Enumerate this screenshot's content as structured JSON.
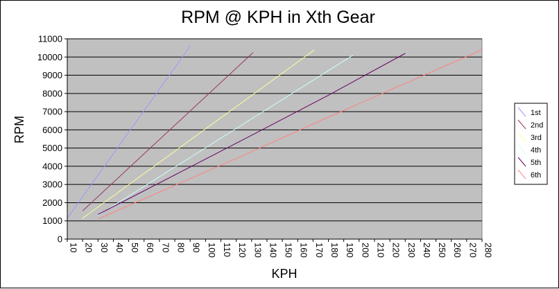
{
  "chart_data": {
    "type": "line",
    "title": "RPM @ KPH in Xth Gear",
    "xlabel": "KPH",
    "ylabel": "RPM",
    "xlim": [
      10,
      280
    ],
    "ylim": [
      0,
      11000
    ],
    "x_ticks": [
      10,
      20,
      30,
      40,
      50,
      60,
      70,
      80,
      90,
      100,
      110,
      120,
      130,
      140,
      150,
      160,
      170,
      180,
      190,
      200,
      210,
      220,
      230,
      240,
      250,
      260,
      270,
      280
    ],
    "y_ticks": [
      0,
      1000,
      2000,
      3000,
      4000,
      5000,
      6000,
      7000,
      8000,
      9000,
      10000,
      11000
    ],
    "grid": "horizontal",
    "legend_position": "right",
    "series": [
      {
        "name": "1st",
        "color": "#9999ff",
        "x": [
          10,
          90
        ],
        "y": [
          1150,
          10600
        ]
      },
      {
        "name": "2nd",
        "color": "#993366",
        "x": [
          20,
          131
        ],
        "y": [
          1550,
          10250
        ]
      },
      {
        "name": "3rd",
        "color": "#ffff99",
        "x": [
          20,
          171
        ],
        "y": [
          1150,
          10400
        ]
      },
      {
        "name": "4th",
        "color": "#ccffff",
        "x": [
          30,
          196
        ],
        "y": [
          1300,
          10100
        ]
      },
      {
        "name": "5th",
        "color": "#660066",
        "x": [
          30,
          80,
          130,
          180,
          230
        ],
        "y": [
          1350,
          3520,
          5700,
          7900,
          10200
        ]
      },
      {
        "name": "6th",
        "color": "#ff8080",
        "x": [
          30,
          80,
          130,
          180,
          230,
          280
        ],
        "y": [
          1100,
          2950,
          4800,
          6700,
          8550,
          10400
        ]
      }
    ]
  }
}
